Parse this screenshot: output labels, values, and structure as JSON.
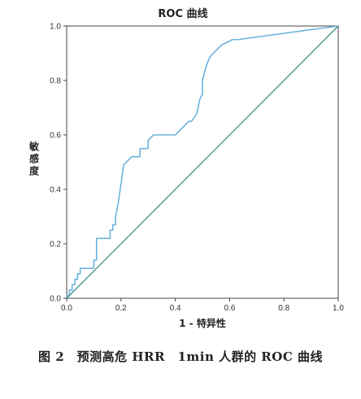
{
  "chart_data": {
    "type": "line",
    "title": "ROC 曲线",
    "xlabel": "1 - 特异性",
    "ylabel": [
      "敏",
      "感",
      "度"
    ],
    "xlim": [
      0,
      1
    ],
    "ylim": [
      0,
      1
    ],
    "xticks": [
      "0.0",
      "0.2",
      "0.4",
      "0.6",
      "0.8",
      "1.0"
    ],
    "yticks": [
      "0.0",
      "0.2",
      "0.4",
      "0.6",
      "0.8",
      "1.0"
    ],
    "grid": false,
    "colors": {
      "roc": "#6cb3dd",
      "reference": "#3e8f85"
    },
    "series": [
      {
        "x": [
          0.0,
          0.0,
          0.01,
          0.01,
          0.02,
          0.02,
          0.03,
          0.03,
          0.04,
          0.04,
          0.05,
          0.05,
          0.06,
          0.06,
          0.1,
          0.1,
          0.11,
          0.11,
          0.16,
          0.16,
          0.17,
          0.17,
          0.18,
          0.18,
          0.19,
          0.2,
          0.21,
          0.21,
          0.24,
          0.25,
          0.26,
          0.27,
          0.27,
          0.29,
          0.3,
          0.3,
          0.32,
          0.33,
          0.4,
          0.41,
          0.43,
          0.45,
          0.46,
          0.48,
          0.49,
          0.5,
          0.5,
          0.51,
          0.52,
          0.53,
          0.55,
          0.57,
          0.59,
          0.61,
          0.63,
          1.0
        ],
        "y": [
          0.0,
          0.01,
          0.01,
          0.03,
          0.03,
          0.05,
          0.05,
          0.07,
          0.07,
          0.09,
          0.09,
          0.11,
          0.11,
          0.11,
          0.11,
          0.14,
          0.14,
          0.22,
          0.22,
          0.25,
          0.25,
          0.27,
          0.27,
          0.3,
          0.35,
          0.42,
          0.49,
          0.49,
          0.52,
          0.52,
          0.52,
          0.52,
          0.55,
          0.55,
          0.55,
          0.58,
          0.6,
          0.6,
          0.6,
          0.61,
          0.63,
          0.65,
          0.65,
          0.68,
          0.73,
          0.75,
          0.8,
          0.84,
          0.87,
          0.89,
          0.91,
          0.93,
          0.94,
          0.95,
          0.95,
          1.0
        ]
      },
      {
        "x": [
          0,
          1
        ],
        "y": [
          0,
          1
        ]
      }
    ]
  },
  "caption": "图 2　预测高危 HRR　1min 人群的 ROC 曲线"
}
